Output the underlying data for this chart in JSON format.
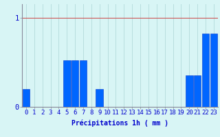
{
  "values": [
    0.2,
    0.0,
    0.0,
    0.0,
    0.0,
    0.52,
    0.52,
    0.52,
    0.0,
    0.2,
    0.0,
    0.0,
    0.0,
    0.0,
    0.0,
    0.0,
    0.0,
    0.0,
    0.0,
    0.0,
    0.35,
    0.35,
    0.82,
    0.82
  ],
  "bar_color": "#0066ff",
  "bar_edge_color": "#0033cc",
  "background_color": "#d8f5f5",
  "grid_color": "#b8dede",
  "axis_color": "#888899",
  "text_color": "#0000cc",
  "xlabel": "Précipitations 1h ( mm )",
  "ylim": [
    0,
    1.15
  ],
  "yticks": [
    0,
    1
  ],
  "label_fontsize": 7,
  "tick_fontsize": 6.5
}
